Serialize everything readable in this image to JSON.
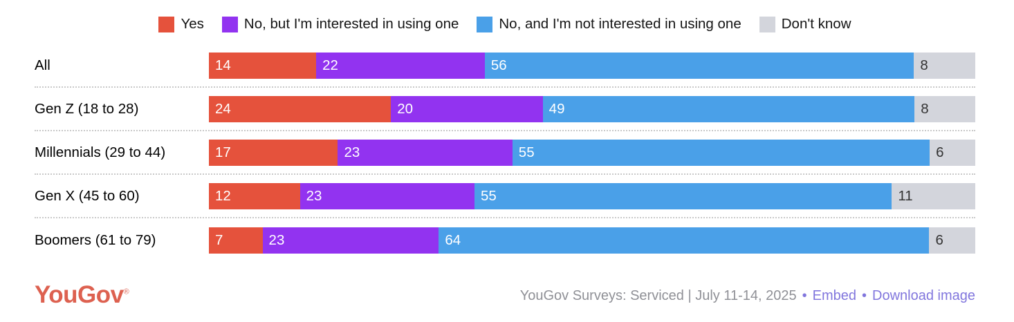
{
  "chart_data": {
    "type": "bar",
    "stacked": true,
    "orientation": "horizontal",
    "legend_position": "top",
    "categories": [
      "All",
      "Gen Z (18 to 28)",
      "Millennials (29 to 44)",
      "Gen X (45 to 60)",
      "Boomers (61 to 79)"
    ],
    "series": [
      {
        "name": "Yes",
        "color": "#e5523c",
        "values": [
          14,
          24,
          17,
          12,
          7
        ]
      },
      {
        "name": "No, but I'm interested in using one",
        "color": "#9233f0",
        "values": [
          22,
          20,
          23,
          23,
          23
        ]
      },
      {
        "name": "No, and I'm not interested in using one",
        "color": "#4aa0e8",
        "values": [
          56,
          49,
          55,
          55,
          64
        ]
      },
      {
        "name": "Don't know",
        "color": "#d3d5dc",
        "values": [
          8,
          8,
          6,
          11,
          6
        ]
      }
    ],
    "value_label_color_on_color": "#ffffff",
    "value_label_color_on_gray": "#333333"
  },
  "footer": {
    "logo_text": "YouGov",
    "logo_registered": "®",
    "logo_color": "#dd6150",
    "source_text": "YouGov Surveys: Serviced | July 11-14, 2025",
    "source_color": "#8f9096",
    "bullet": "•",
    "links": [
      {
        "label": "Embed"
      },
      {
        "label": "Download image"
      }
    ],
    "link_color": "#8176dd"
  }
}
